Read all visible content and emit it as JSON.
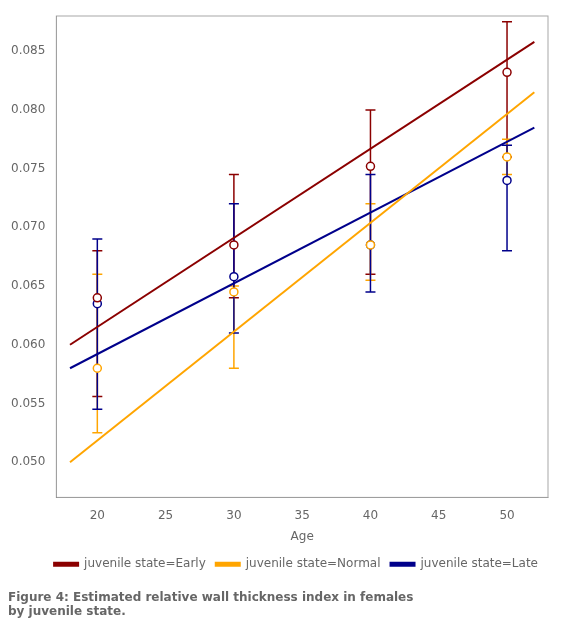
{
  "chart_data": {
    "type": "scatter",
    "title": "Figure 4: Estimated relative wall thickness index in females\nby juvenile state.",
    "xlabel": "Age",
    "x": [
      20,
      30,
      40,
      50
    ],
    "fit_x": [
      18,
      52
    ],
    "series": [
      {
        "name": "juvenile state=Early",
        "color": "#8B0000",
        "values": [
          0.064,
          0.0685,
          0.0752,
          0.0832
        ],
        "lower": [
          0.0556,
          0.064,
          0.066,
          0.076
        ],
        "upper": [
          0.068,
          0.0745,
          0.08,
          0.0875
        ],
        "fit_values": [
          0.06,
          0.0858
        ]
      },
      {
        "name": "juvenile state=Normal",
        "color": "#FFA500",
        "values": [
          0.058,
          0.0645,
          0.0685,
          0.076
        ],
        "lower": [
          0.0525,
          0.058,
          0.0655,
          0.0745
        ],
        "upper": [
          0.066,
          0.065,
          0.072,
          0.0775
        ],
        "fit_values": [
          0.05,
          0.0815
        ]
      },
      {
        "name": "juvenile state=Late",
        "color": "#00008B",
        "values": [
          0.0635,
          0.0658,
          0.0685,
          0.074
        ],
        "lower": [
          0.0545,
          0.061,
          0.0645,
          0.068
        ],
        "upper": [
          0.069,
          0.072,
          0.0745,
          0.077
        ],
        "fit_values": [
          0.058,
          0.0785
        ]
      }
    ],
    "xlim": [
      17,
      53
    ],
    "xticks": [
      20,
      25,
      30,
      35,
      40,
      45,
      50
    ],
    "ylim": [
      0.047,
      0.088
    ],
    "yticks": [
      {
        "value": 0.05,
        "label": "0.050"
      },
      0.055,
      {
        "value": 0.06,
        "label": "0.060"
      },
      0.065,
      {
        "value": 0.07,
        "label": "0.070"
      },
      0.075,
      {
        "value": 0.08,
        "label": "0.080"
      },
      0.085
    ],
    "grid": false,
    "legend": "lower right",
    "marker": "circle"
  }
}
